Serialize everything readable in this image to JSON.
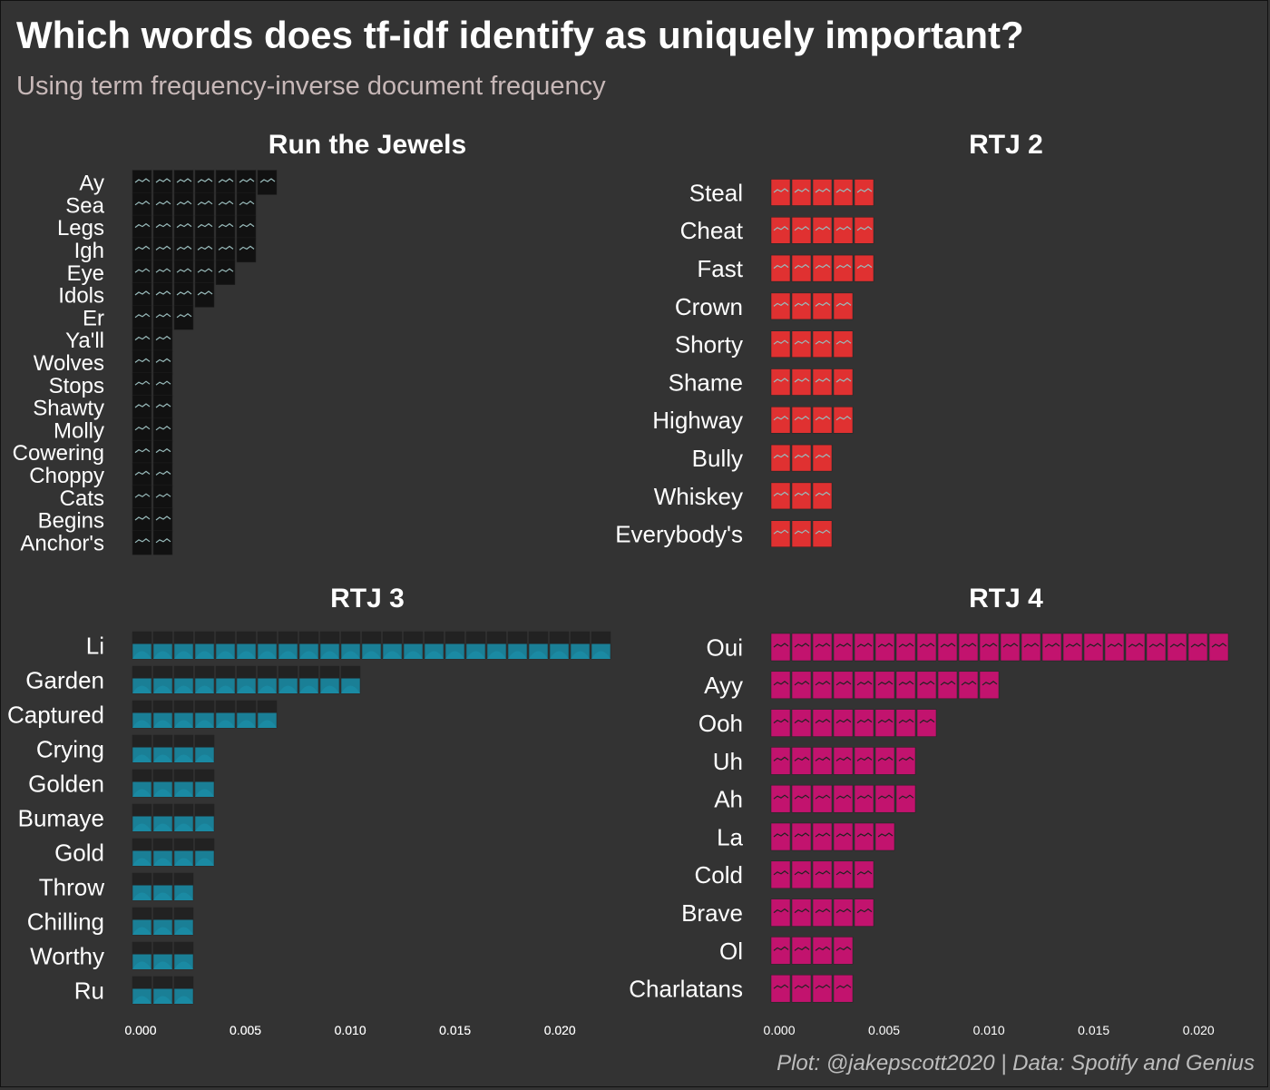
{
  "title": "Which words does tf-idf identify as uniquely important?",
  "subtitle": "Using term frequency-inverse document frequency",
  "caption": "Plot: @jakepscott2020 | Data: Spotify and Genius",
  "chart_data": [
    {
      "type": "bar",
      "title": "Run the Jewels",
      "color": "#111111",
      "categories": [
        "Ay",
        "Sea",
        "Legs",
        "Igh",
        "Eye",
        "Idols",
        "Er",
        "Ya'll",
        "Wolves",
        "Stops",
        "Shawty",
        "Molly",
        "Cowering",
        "Choppy",
        "Cats",
        "Begins",
        "Anchor's"
      ],
      "values": [
        0.0073,
        0.0056,
        0.0056,
        0.0056,
        0.0046,
        0.0036,
        0.0026,
        0.0015,
        0.0015,
        0.0015,
        0.0015,
        0.0015,
        0.0015,
        0.0015,
        0.0015,
        0.0015,
        0.0015
      ],
      "xlim": [
        0,
        0.0225
      ],
      "xticks": [
        "0.000",
        "0.005",
        "0.010",
        "0.015",
        "0.020"
      ]
    },
    {
      "type": "bar",
      "title": "RTJ 2",
      "color": "#e03131",
      "categories": [
        "Steal",
        "Cheat",
        "Fast",
        "Crown",
        "Shorty",
        "Shame",
        "Highway",
        "Bully",
        "Whiskey",
        "Everybody's"
      ],
      "values": [
        0.0045,
        0.0045,
        0.0045,
        0.0035,
        0.0035,
        0.0035,
        0.0035,
        0.0025,
        0.0025,
        0.0025
      ],
      "xlim": [
        0,
        0.0225
      ],
      "xticks": []
    },
    {
      "type": "bar",
      "title": "RTJ 3",
      "color": "#1a7f96",
      "categories": [
        "Li",
        "Garden",
        "Captured",
        "Crying",
        "Golden",
        "Bumaye",
        "Gold",
        "Throw",
        "Chilling",
        "Worthy",
        "Ru"
      ],
      "values": [
        0.0225,
        0.0105,
        0.0065,
        0.0035,
        0.0035,
        0.0035,
        0.0035,
        0.0025,
        0.0025,
        0.0025,
        0.0025
      ],
      "xlim": [
        0,
        0.0225
      ],
      "xticks": [
        "0.000",
        "0.005",
        "0.010",
        "0.015",
        "0.020"
      ]
    },
    {
      "type": "bar",
      "title": "RTJ 4",
      "color": "#c2136e",
      "categories": [
        "Oui",
        "Ayy",
        "Ooh",
        "Uh",
        "Ah",
        "La",
        "Cold",
        "Brave",
        "Ol",
        "Charlatans"
      ],
      "values": [
        0.0215,
        0.0105,
        0.0075,
        0.0065,
        0.0065,
        0.0055,
        0.0045,
        0.0045,
        0.0035,
        0.0035
      ],
      "xlim": [
        0,
        0.0225
      ],
      "xticks": [
        "0.000",
        "0.005",
        "0.010",
        "0.015",
        "0.020"
      ]
    }
  ]
}
